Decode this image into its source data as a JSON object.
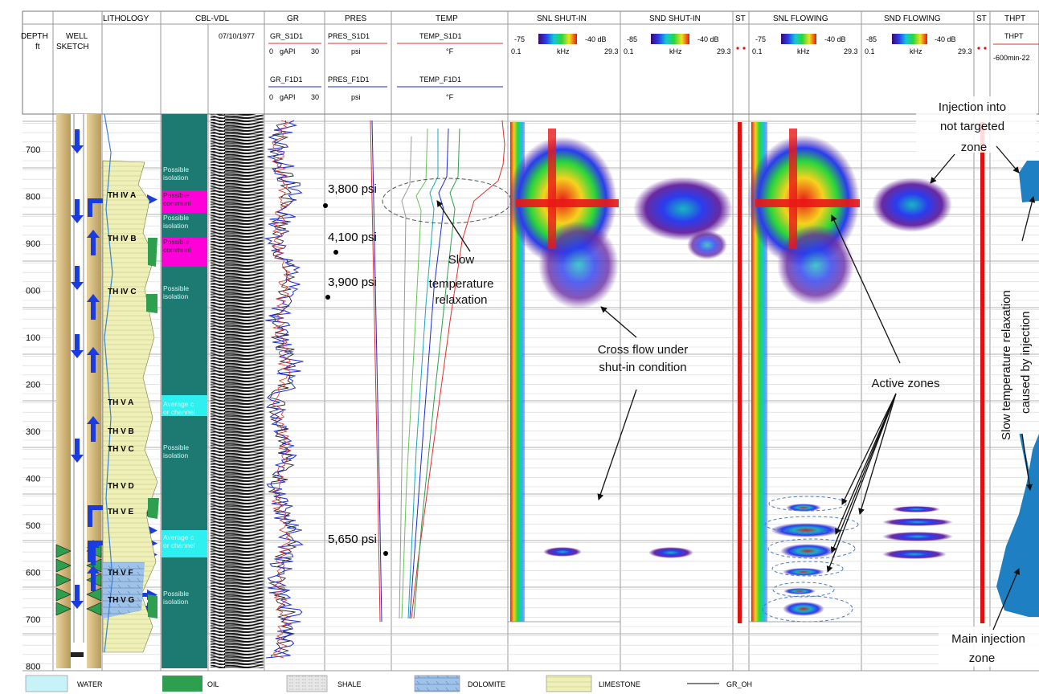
{
  "header": {
    "depth_title_1": "DEPTH",
    "depth_unit": "ft",
    "well_title_1": "WELL",
    "well_title_2": "SKETCH",
    "lithology": "LITHOLOGY",
    "cbl_vdl": "CBL-VDL",
    "cbl_date": "07/10/1977",
    "gr": "GR",
    "gr_s": "GR_S1D1",
    "gr_s_scale": [
      "0",
      "gAPI",
      "30"
    ],
    "gr_f": "GR_F1D1",
    "gr_f_scale": [
      "0",
      "gAPI",
      "30"
    ],
    "pres": "PRES",
    "pres_s": "PRES_S1D1",
    "pres_s_unit": "psi",
    "pres_f": "PRES_F1D1",
    "pres_f_unit": "psi",
    "temp": "TEMP",
    "temp_s": "TEMP_S1D1",
    "temp_s_unit": "°F",
    "temp_f": "TEMP_F1D1",
    "temp_f_unit": "°F",
    "snl_shut": "SNL SHUT-IN",
    "snl_shut_scale": [
      "-75",
      "-40 dB",
      "0.1",
      "kHz",
      "29.3"
    ],
    "snd_shut": "SND SHUT-IN",
    "snd_shut_scale": [
      "-85",
      "-40 dB",
      "0.1",
      "kHz",
      "29.3"
    ],
    "st1": "ST",
    "snl_flow": "SNL FLOWING",
    "snl_flow_scale": [
      "-75",
      "-40 dB",
      "0.1",
      "kHz",
      "29.3"
    ],
    "snd_flow": "SND FLOWING",
    "snd_flow_scale": [
      "-85",
      "-40 dB",
      "0.1",
      "kHz",
      "29.3"
    ],
    "st2": "ST",
    "thpt": "THPT",
    "thpt_sub": "THPT",
    "thpt_scale": "-600min-22"
  },
  "depth_labels": [
    "700",
    "800",
    "900",
    "000",
    "100",
    "200",
    "300",
    "400",
    "500",
    "600",
    "700",
    "800"
  ],
  "zones": [
    "TH IV A",
    "TH IV B",
    "TH IV C",
    "TH V A",
    "TH V B",
    "TH V C",
    "TH V D",
    "TH V E",
    "TH V F",
    "TH V G"
  ],
  "cbl_labels": [
    [
      "Possible",
      "isolation"
    ],
    [
      "Possible",
      "communi"
    ],
    [
      "Possible",
      "isolation"
    ],
    [
      "Possible",
      "communi"
    ],
    [
      "Possible",
      "isolation"
    ],
    [
      "Average c",
      "or channel"
    ],
    [
      "Possible",
      "isolation"
    ],
    [
      "Average c",
      "or channel"
    ],
    [
      "Possible",
      "isolation"
    ]
  ],
  "pressures": [
    "3,800 psi",
    "4,100 psi",
    "3,900 psi",
    "5,650 psi"
  ],
  "annotations": {
    "slow_temp": [
      "Slow",
      "temperature",
      "relaxation"
    ],
    "cross_flow": [
      "Cross flow under",
      "shut-in condition"
    ],
    "active_zones": "Active zones",
    "injection_not_targeted": [
      "Injection into",
      "not targeted",
      "zone"
    ],
    "slow_temp_injection": [
      "Slow temperature relaxation",
      "caused by injection"
    ],
    "main_injection": [
      "Main injection",
      "zone"
    ]
  },
  "legend": [
    {
      "label": "WATER",
      "color": "#c7f2f7"
    },
    {
      "label": "OIL",
      "color": "#2e9e4f"
    },
    {
      "label": "SHALE",
      "color": "#d9d9d9"
    },
    {
      "label": "DOLOMITE",
      "color": "#9fc2e8"
    },
    {
      "label": "LIMESTONE",
      "color": "#eef0b8"
    },
    {
      "label": "GR_OH",
      "color": "#000000"
    }
  ],
  "colors": {
    "curve_shut": "#e0302a",
    "curve_flow": "#1a2ad6",
    "cbl_track": "#1d7a72",
    "magenta": "#ff00d8",
    "cyan": "#2ff0f0",
    "thpt_fill": "#1e7fc2",
    "arrow": "#1a3be0",
    "st_line": "#e01010"
  }
}
